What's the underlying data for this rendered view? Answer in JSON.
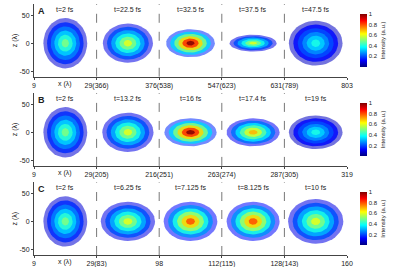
{
  "chart_data": [
    {
      "type": "pulse_snapshots",
      "title": "A",
      "x_label": "x (λ)",
      "z_label": "z (λ)",
      "segments": [
        [
          9,
          29
        ],
        [
          366,
          376
        ],
        [
          538,
          547
        ],
        [
          623,
          631
        ],
        [
          789,
          803
        ]
      ],
      "xticks": [
        9,
        {
          "value": 29,
          "label": "29(366)"
        },
        {
          "value": 376,
          "label": "376(538)"
        },
        {
          "value": 547,
          "label": "547(623)"
        },
        {
          "value": 631,
          "label": "631(789)"
        },
        803
      ],
      "zlim": [
        -60,
        70
      ],
      "zticks": [
        -50,
        0,
        50
      ],
      "snapshots": [
        {
          "time": "t=2 fs",
          "x_extent": [
            12,
            26
          ],
          "z_extent": [
            -45,
            45
          ],
          "peak": 0.5
        },
        {
          "time": "t=22.5 fs",
          "x_extent": [
            367,
            375
          ],
          "z_extent": [
            -35,
            35
          ],
          "peak": 0.6
        },
        {
          "time": "t=32.5 fs",
          "x_extent": [
            539,
            546
          ],
          "z_extent": [
            -25,
            25
          ],
          "peak": 1
        },
        {
          "time": "t=37.5 fs",
          "x_extent": [
            624,
            630
          ],
          "z_extent": [
            -15,
            15
          ],
          "peak": 0.6
        },
        {
          "time": "t=47.5 fs",
          "x_extent": [
            790,
            802
          ],
          "z_extent": [
            -40,
            40
          ],
          "peak": 0.4
        }
      ],
      "colorbar": {
        "title": "Intensity (a.u.)",
        "range": [
          0,
          1
        ],
        "ticks": [
          0.2,
          0.4,
          0.6,
          0.8,
          1
        ]
      }
    },
    {
      "type": "pulse_snapshots",
      "title": "B",
      "x_label": "x (λ)",
      "z_label": "z (λ)",
      "segments": [
        [
          9,
          29
        ],
        [
          205,
          216
        ],
        [
          251,
          263
        ],
        [
          274,
          287
        ],
        [
          305,
          319
        ]
      ],
      "xticks": [
        9,
        {
          "value": 29,
          "label": "29(205)"
        },
        {
          "value": 216,
          "label": "216(251)"
        },
        {
          "value": 263,
          "label": "263(274)"
        },
        {
          "value": 287,
          "label": "287(305)"
        },
        319
      ],
      "zlim": [
        -60,
        70
      ],
      "zticks": [
        -50,
        0,
        50
      ],
      "snapshots": [
        {
          "time": "t=2 fs",
          "x_extent": [
            12,
            26
          ],
          "z_extent": [
            -45,
            45
          ],
          "peak": 0.5
        },
        {
          "time": "t=13.2 fs",
          "x_extent": [
            206,
            215
          ],
          "z_extent": [
            -35,
            35
          ],
          "peak": 0.6
        },
        {
          "time": "t=16 fs",
          "x_extent": [
            252,
            262
          ],
          "z_extent": [
            -25,
            25
          ],
          "peak": 1
        },
        {
          "time": "t=17.4 fs",
          "x_extent": [
            275,
            286
          ],
          "z_extent": [
            -25,
            25
          ],
          "peak": 0.7
        },
        {
          "time": "t=19 fs",
          "x_extent": [
            306,
            318
          ],
          "z_extent": [
            -30,
            30
          ],
          "peak": 0.4
        }
      ],
      "colorbar": {
        "title": "Intensity (a.u.)",
        "range": [
          0,
          1
        ],
        "ticks": [
          0.2,
          0.4,
          0.6,
          0.8,
          1
        ]
      }
    },
    {
      "type": "pulse_snapshots",
      "title": "C",
      "x_label": "x (λ)",
      "z_label": "z (λ)",
      "segments": [
        [
          9,
          29
        ],
        [
          83,
          98
        ],
        [
          98,
          112
        ],
        [
          115,
          128
        ],
        [
          143,
          160
        ]
      ],
      "xticks": [
        9,
        {
          "value": 29,
          "label": "29(83)"
        },
        98,
        {
          "value": 112,
          "label": "112(115)"
        },
        {
          "value": 128,
          "label": "128(143)"
        },
        160
      ],
      "zlim": [
        -60,
        70
      ],
      "zticks": [
        -50,
        0,
        50
      ],
      "snapshots": [
        {
          "time": "t=2 fs",
          "x_extent": [
            12,
            26
          ],
          "z_extent": [
            -45,
            45
          ],
          "peak": 0.5
        },
        {
          "time": "t=6.25 fs",
          "x_extent": [
            84,
            97
          ],
          "z_extent": [
            -35,
            35
          ],
          "peak": 0.6
        },
        {
          "time": "t=7.125 fs",
          "x_extent": [
            99,
            111
          ],
          "z_extent": [
            -35,
            35
          ],
          "peak": 0.8
        },
        {
          "time": "t=8.125 fs",
          "x_extent": [
            116,
            127
          ],
          "z_extent": [
            -35,
            35
          ],
          "peak": 0.8
        },
        {
          "time": "t=10 fs",
          "x_extent": [
            144,
            159
          ],
          "z_extent": [
            -40,
            40
          ],
          "peak": 0.6
        }
      ],
      "colorbar": {
        "title": "Intensity (a.u.)",
        "range": [
          0,
          1
        ],
        "ticks": [
          0.2,
          0.4,
          0.6,
          0.8,
          1
        ]
      }
    }
  ]
}
